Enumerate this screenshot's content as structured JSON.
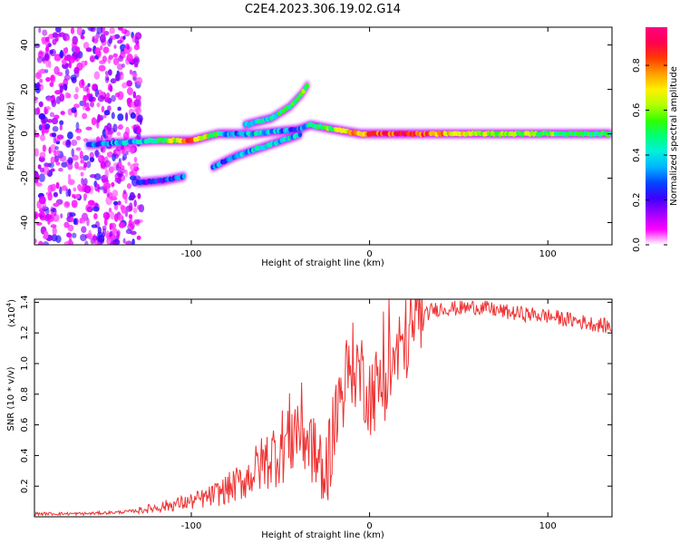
{
  "title": "C2E4.2023.306.19.02.G14",
  "chart_data": [
    {
      "type": "heatmap",
      "xlabel": "Height of straight line (km)",
      "ylabel": "Frequency (Hz)",
      "xlim": [
        -188,
        136
      ],
      "ylim": [
        -50,
        48
      ],
      "x_ticks": [
        -100,
        0,
        100
      ],
      "y_ticks": [
        -40,
        -20,
        0,
        20,
        40
      ],
      "colorbar": {
        "label": "Normalized spectral amplitude",
        "range": [
          0,
          0.97
        ],
        "ticks": [
          0.0,
          0.2,
          0.4,
          0.6,
          0.8
        ],
        "colors": [
          "#ffffff",
          "#ff00ff",
          "#a000ff",
          "#3c00ff",
          "#0048ff",
          "#00b4ff",
          "#00f0dc",
          "#00ff78",
          "#32ff00",
          "#b4ff00",
          "#fff000",
          "#ffa000",
          "#ff3c00",
          "#ff0050",
          "#ff0080"
        ]
      },
      "ridges": [
        {
          "name": "main",
          "points": [
            [
              -158,
              -5,
              0.25
            ],
            [
              -140,
              -4,
              0.35
            ],
            [
              -120,
              -3,
              0.45
            ],
            [
              -100,
              -3,
              0.85
            ],
            [
              -85,
              0,
              0.5
            ],
            [
              -78,
              0,
              0.3
            ],
            [
              -65,
              0,
              0.4
            ],
            [
              -40,
              2,
              0.3
            ],
            [
              -33,
              4,
              0.45
            ],
            [
              -20,
              2,
              0.6
            ],
            [
              -5,
              0,
              0.8
            ],
            [
              20,
              0,
              0.9
            ],
            [
              50,
              0,
              0.7
            ],
            [
              80,
              0,
              0.6
            ],
            [
              110,
              0,
              0.55
            ],
            [
              136,
              0,
              0.5
            ]
          ]
        },
        {
          "name": "rising-branch",
          "points": [
            [
              -70,
              4,
              0.4
            ],
            [
              -55,
              7,
              0.45
            ],
            [
              -45,
              12,
              0.5
            ],
            [
              -38,
              18,
              0.55
            ],
            [
              -34,
              23,
              0.6
            ]
          ]
        },
        {
          "name": "lower-branch",
          "points": [
            [
              -88,
              -15,
              0.3
            ],
            [
              -75,
              -10,
              0.35
            ],
            [
              -60,
              -6,
              0.4
            ],
            [
              -45,
              -2,
              0.4
            ],
            [
              -38,
              0,
              0.35
            ]
          ]
        },
        {
          "name": "low-echo",
          "points": [
            [
              -130,
              -22,
              0.2
            ],
            [
              -115,
              -21,
              0.25
            ],
            [
              -103,
              -19,
              0.3
            ]
          ]
        }
      ],
      "noise_region": [
        -188,
        -128
      ]
    },
    {
      "type": "line",
      "xlabel": "Height of straight line (km)",
      "ylabel": "SNR (10 * v/v)",
      "y_scale_label": "(x10",
      "y_scale_exp": "4",
      "y_scale_close": ")",
      "xlim": [
        -188,
        136
      ],
      "ylim": [
        0,
        1.42
      ],
      "x_ticks": [
        -100,
        0,
        100
      ],
      "y_ticks": [
        0.2,
        0.4,
        0.6,
        0.8,
        1.0,
        1.2,
        1.4
      ],
      "color": "#ee3333",
      "series": [
        {
          "x": [
            -188,
            -160,
            -140,
            -130,
            -120,
            -110,
            -100,
            -90,
            -80,
            -70,
            -60,
            -50,
            -40,
            -32,
            -25,
            -20,
            -15,
            -10,
            -5,
            0,
            5,
            10,
            15,
            20,
            25,
            30,
            35,
            40,
            50,
            60,
            70,
            80,
            90,
            100,
            110,
            120,
            130,
            136
          ],
          "y": [
            0.02,
            0.02,
            0.03,
            0.04,
            0.06,
            0.08,
            0.1,
            0.13,
            0.18,
            0.24,
            0.35,
            0.45,
            0.6,
            0.45,
            0.25,
            0.6,
            0.85,
            1.0,
            0.95,
            0.8,
            0.85,
            0.92,
            1.05,
            1.15,
            1.25,
            1.3,
            1.35,
            1.36,
            1.36,
            1.37,
            1.35,
            1.33,
            1.32,
            1.31,
            1.29,
            1.27,
            1.25,
            1.24
          ]
        }
      ]
    }
  ]
}
